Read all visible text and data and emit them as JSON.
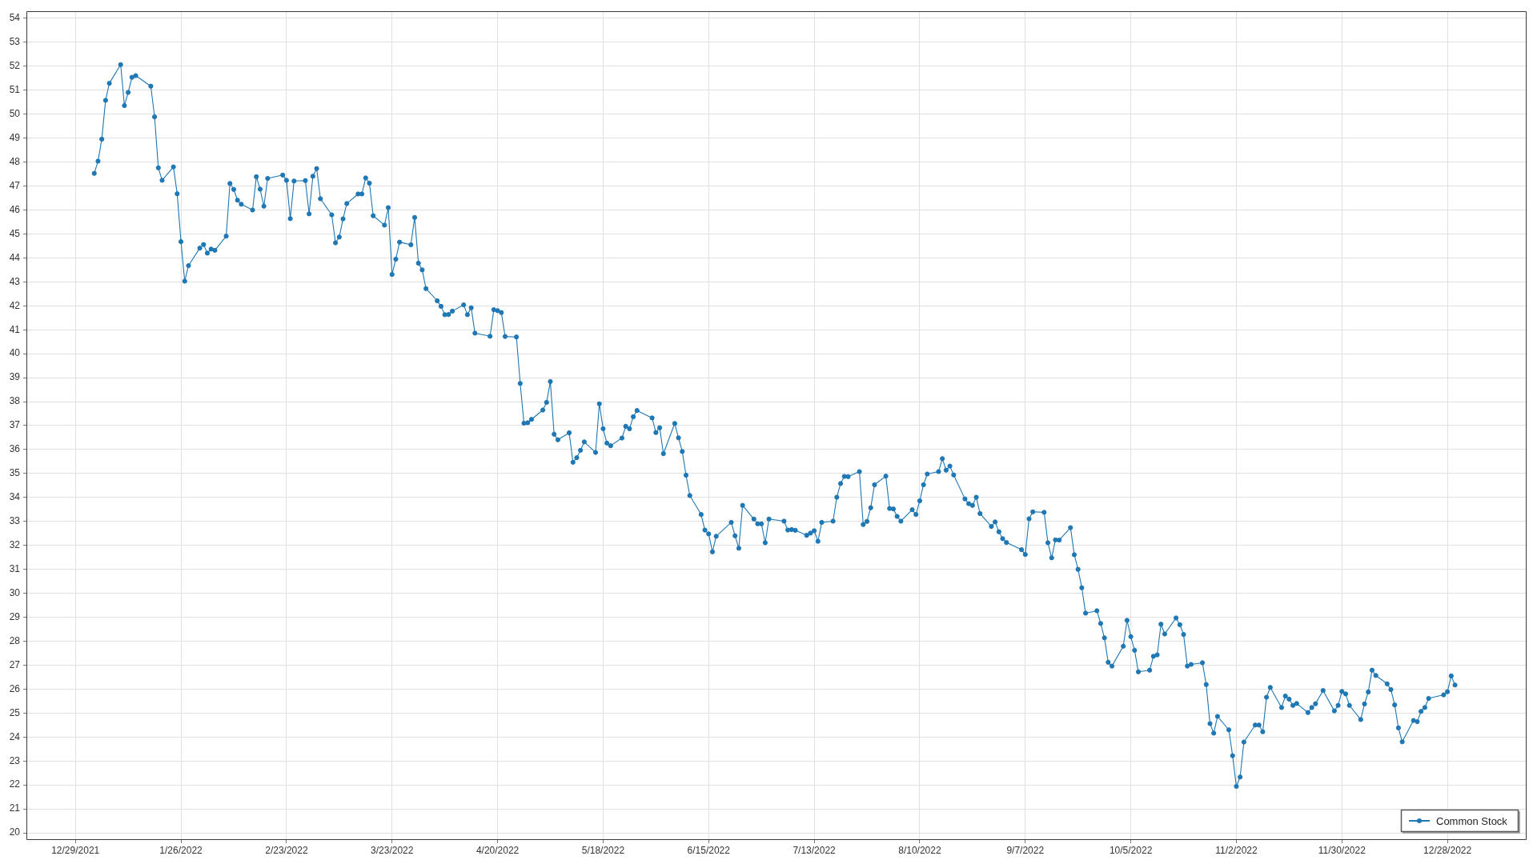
{
  "chart_data": {
    "type": "line",
    "x": [
      "2022-01-03",
      "2022-01-04",
      "2022-01-05",
      "2022-01-06",
      "2022-01-07",
      "2022-01-10",
      "2022-01-11",
      "2022-01-12",
      "2022-01-13",
      "2022-01-14",
      "2022-01-18",
      "2022-01-19",
      "2022-01-20",
      "2022-01-21",
      "2022-01-24",
      "2022-01-25",
      "2022-01-26",
      "2022-01-27",
      "2022-01-28",
      "2022-01-31",
      "2022-02-01",
      "2022-02-02",
      "2022-02-03",
      "2022-02-04",
      "2022-02-07",
      "2022-02-08",
      "2022-02-09",
      "2022-02-10",
      "2022-02-11",
      "2022-02-14",
      "2022-02-15",
      "2022-02-16",
      "2022-02-17",
      "2022-02-18",
      "2022-02-22",
      "2022-02-23",
      "2022-02-24",
      "2022-02-25",
      "2022-02-28",
      "2022-03-01",
      "2022-03-02",
      "2022-03-03",
      "2022-03-04",
      "2022-03-07",
      "2022-03-08",
      "2022-03-09",
      "2022-03-10",
      "2022-03-11",
      "2022-03-14",
      "2022-03-15",
      "2022-03-16",
      "2022-03-17",
      "2022-03-18",
      "2022-03-21",
      "2022-03-22",
      "2022-03-23",
      "2022-03-24",
      "2022-03-25",
      "2022-03-28",
      "2022-03-29",
      "2022-03-30",
      "2022-03-31",
      "2022-04-01",
      "2022-04-04",
      "2022-04-05",
      "2022-04-06",
      "2022-04-07",
      "2022-04-08",
      "2022-04-11",
      "2022-04-12",
      "2022-04-13",
      "2022-04-14",
      "2022-04-18",
      "2022-04-19",
      "2022-04-20",
      "2022-04-21",
      "2022-04-22",
      "2022-04-25",
      "2022-04-26",
      "2022-04-27",
      "2022-04-28",
      "2022-04-29",
      "2022-05-02",
      "2022-05-03",
      "2022-05-04",
      "2022-05-05",
      "2022-05-06",
      "2022-05-09",
      "2022-05-10",
      "2022-05-11",
      "2022-05-12",
      "2022-05-13",
      "2022-05-16",
      "2022-05-17",
      "2022-05-18",
      "2022-05-19",
      "2022-05-20",
      "2022-05-23",
      "2022-05-24",
      "2022-05-25",
      "2022-05-26",
      "2022-05-27",
      "2022-05-31",
      "2022-06-01",
      "2022-06-02",
      "2022-06-03",
      "2022-06-06",
      "2022-06-07",
      "2022-06-08",
      "2022-06-09",
      "2022-06-10",
      "2022-06-13",
      "2022-06-14",
      "2022-06-15",
      "2022-06-16",
      "2022-06-17",
      "2022-06-21",
      "2022-06-22",
      "2022-06-23",
      "2022-06-24",
      "2022-06-27",
      "2022-06-28",
      "2022-06-29",
      "2022-06-30",
      "2022-07-01",
      "2022-07-05",
      "2022-07-06",
      "2022-07-07",
      "2022-07-08",
      "2022-07-11",
      "2022-07-12",
      "2022-07-13",
      "2022-07-14",
      "2022-07-15",
      "2022-07-18",
      "2022-07-19",
      "2022-07-20",
      "2022-07-21",
      "2022-07-22",
      "2022-07-25",
      "2022-07-26",
      "2022-07-27",
      "2022-07-28",
      "2022-07-29",
      "2022-08-01",
      "2022-08-02",
      "2022-08-03",
      "2022-08-04",
      "2022-08-05",
      "2022-08-08",
      "2022-08-09",
      "2022-08-10",
      "2022-08-11",
      "2022-08-12",
      "2022-08-15",
      "2022-08-16",
      "2022-08-17",
      "2022-08-18",
      "2022-08-19",
      "2022-08-22",
      "2022-08-23",
      "2022-08-24",
      "2022-08-25",
      "2022-08-26",
      "2022-08-29",
      "2022-08-30",
      "2022-08-31",
      "2022-09-01",
      "2022-09-02",
      "2022-09-06",
      "2022-09-07",
      "2022-09-08",
      "2022-09-09",
      "2022-09-12",
      "2022-09-13",
      "2022-09-14",
      "2022-09-15",
      "2022-09-16",
      "2022-09-19",
      "2022-09-20",
      "2022-09-21",
      "2022-09-22",
      "2022-09-23",
      "2022-09-26",
      "2022-09-27",
      "2022-09-28",
      "2022-09-29",
      "2022-09-30",
      "2022-10-03",
      "2022-10-04",
      "2022-10-05",
      "2022-10-06",
      "2022-10-07",
      "2022-10-10",
      "2022-10-11",
      "2022-10-12",
      "2022-10-13",
      "2022-10-14",
      "2022-10-17",
      "2022-10-18",
      "2022-10-19",
      "2022-10-20",
      "2022-10-21",
      "2022-10-24",
      "2022-10-25",
      "2022-10-26",
      "2022-10-27",
      "2022-10-28",
      "2022-10-31",
      "2022-11-01",
      "2022-11-02",
      "2022-11-03",
      "2022-11-04",
      "2022-11-07",
      "2022-11-08",
      "2022-11-09",
      "2022-11-10",
      "2022-11-11",
      "2022-11-14",
      "2022-11-15",
      "2022-11-16",
      "2022-11-17",
      "2022-11-18",
      "2022-11-21",
      "2022-11-22",
      "2022-11-23",
      "2022-11-25",
      "2022-11-28",
      "2022-11-29",
      "2022-11-30",
      "2022-12-01",
      "2022-12-02",
      "2022-12-05",
      "2022-12-06",
      "2022-12-07",
      "2022-12-08",
      "2022-12-09",
      "2022-12-12",
      "2022-12-13",
      "2022-12-14",
      "2022-12-15",
      "2022-12-16",
      "2022-12-19",
      "2022-12-20",
      "2022-12-21",
      "2022-12-22",
      "2022-12-23",
      "2022-12-27",
      "2022-12-28",
      "2022-12-29",
      "2022-12-30"
    ],
    "series": [
      {
        "name": "Common Stock",
        "color": "#1f77b4",
        "values": [
          47.53,
          48.04,
          48.96,
          50.58,
          51.29,
          52.07,
          50.36,
          50.91,
          51.54,
          51.61,
          51.17,
          49.89,
          47.76,
          47.24,
          47.8,
          46.68,
          44.68,
          43.03,
          43.68,
          44.41,
          44.56,
          44.2,
          44.37,
          44.32,
          44.91,
          47.11,
          46.86,
          46.41,
          46.24,
          46.0,
          47.39,
          46.87,
          46.16,
          47.32,
          47.46,
          47.24,
          45.64,
          47.21,
          47.23,
          45.84,
          47.41,
          47.73,
          46.47,
          45.8,
          44.63,
          44.87,
          45.63,
          46.27,
          46.67,
          46.67,
          47.34,
          47.12,
          45.76,
          45.37,
          46.1,
          43.31,
          43.95,
          44.66,
          44.55,
          45.69,
          43.78,
          43.5,
          42.72,
          42.21,
          41.98,
          41.63,
          41.64,
          41.78,
          42.04,
          41.63,
          41.92,
          40.86,
          40.73,
          41.84,
          41.8,
          41.72,
          40.72,
          40.7,
          38.76,
          37.1,
          37.12,
          37.26,
          37.65,
          37.97,
          38.84,
          36.64,
          36.41,
          36.7,
          35.47,
          35.66,
          35.97,
          36.32,
          35.88,
          37.91,
          36.87,
          36.27,
          36.16,
          36.48,
          36.97,
          36.87,
          37.37,
          37.63,
          37.32,
          36.71,
          36.91,
          35.83,
          37.09,
          36.49,
          35.92,
          34.93,
          34.08,
          33.29,
          32.64,
          32.48,
          31.73,
          32.38,
          32.96,
          32.4,
          31.88,
          33.67,
          33.1,
          32.9,
          32.9,
          32.11,
          33.1,
          33.01,
          32.64,
          32.66,
          32.63,
          32.42,
          32.51,
          32.61,
          32.17,
          32.96,
          33.01,
          34.01,
          34.58,
          34.88,
          34.87,
          35.08,
          32.87,
          33.0,
          33.57,
          34.53,
          34.89,
          33.54,
          33.52,
          33.21,
          33.01,
          33.49,
          33.29,
          33.86,
          34.53,
          34.98,
          35.08,
          35.62,
          35.14,
          35.31,
          34.94,
          33.94,
          33.74,
          33.67,
          34.01,
          33.33,
          32.79,
          32.98,
          32.57,
          32.28,
          32.12,
          31.82,
          31.62,
          33.11,
          33.4,
          33.38,
          32.11,
          31.48,
          32.23,
          32.22,
          32.74,
          31.61,
          31.0,
          30.23,
          29.17,
          29.27,
          28.74,
          28.14,
          27.12,
          26.96,
          27.79,
          28.87,
          28.19,
          27.62,
          26.72,
          26.79,
          27.37,
          27.43,
          28.71,
          28.3,
          28.97,
          28.69,
          28.28,
          26.96,
          27.03,
          27.1,
          26.19,
          24.56,
          24.16,
          24.86,
          24.3,
          23.22,
          21.94,
          22.33,
          23.79,
          24.5,
          24.5,
          24.22,
          25.66,
          26.07,
          25.23,
          25.71,
          25.58,
          25.32,
          25.4,
          25.02,
          25.23,
          25.39,
          25.94,
          25.09,
          25.32,
          25.9,
          25.8,
          25.32,
          24.73,
          25.38,
          25.88,
          26.79,
          26.57,
          26.22,
          25.98,
          25.34,
          24.38,
          23.8,
          24.69,
          24.64,
          25.07,
          25.23,
          25.61,
          25.76,
          25.89,
          26.55,
          26.17
        ]
      }
    ],
    "xlim": [
      "2021-12-16",
      "2023-01-18"
    ],
    "xticks": [
      {
        "value": "2021-12-29",
        "label": "12/29/2021"
      },
      {
        "value": "2022-01-26",
        "label": "1/26/2022"
      },
      {
        "value": "2022-02-23",
        "label": "2/23/2022"
      },
      {
        "value": "2022-03-23",
        "label": "3/23/2022"
      },
      {
        "value": "2022-04-20",
        "label": "4/20/2022"
      },
      {
        "value": "2022-05-18",
        "label": "5/18/2022"
      },
      {
        "value": "2022-06-15",
        "label": "6/15/2022"
      },
      {
        "value": "2022-07-13",
        "label": "7/13/2022"
      },
      {
        "value": "2022-08-10",
        "label": "8/10/2022"
      },
      {
        "value": "2022-09-07",
        "label": "9/7/2022"
      },
      {
        "value": "2022-10-05",
        "label": "10/5/2022"
      },
      {
        "value": "2022-11-02",
        "label": "11/2/2022"
      },
      {
        "value": "2022-11-30",
        "label": "11/30/2022"
      },
      {
        "value": "2022-12-28",
        "label": "12/28/2022"
      }
    ],
    "ylim": [
      19.7,
      54.3
    ],
    "yticks": [
      20,
      21,
      22,
      23,
      24,
      25,
      26,
      27,
      28,
      29,
      30,
      31,
      32,
      33,
      34,
      35,
      36,
      37,
      38,
      39,
      40,
      41,
      42,
      43,
      44,
      45,
      46,
      47,
      48,
      49,
      50,
      51,
      52,
      53,
      54
    ],
    "grid": true,
    "legend": "bottom right",
    "marker": "circle",
    "line_style": "solid"
  }
}
